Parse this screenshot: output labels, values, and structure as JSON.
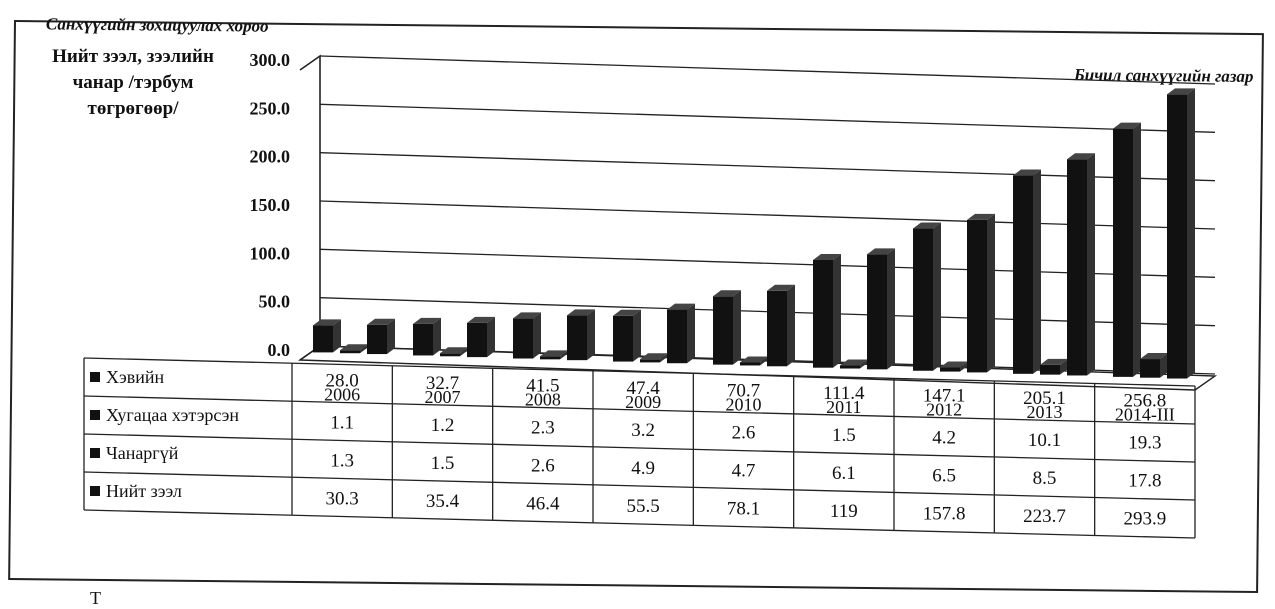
{
  "header": {
    "top_left": "Санхүүгийн зохицуулах хороо",
    "top_right": "Бичил санхүүгийн газар"
  },
  "chart_data": {
    "type": "bar",
    "ylabel": "Нийт зээл, зээлийн чанар /тэрбум төгрөгөөр/",
    "ylim": [
      0,
      300
    ],
    "yticks": [
      "0.0",
      "50.0",
      "100.0",
      "150.0",
      "200.0",
      "250.0",
      "300.0"
    ],
    "categories": [
      "2006",
      "2007",
      "2008",
      "2009",
      "2010",
      "2011",
      "2012",
      "2013",
      "2014-III"
    ],
    "series": [
      {
        "name": "Хэвийн",
        "values": [
          28.0,
          32.7,
          41.5,
          47.4,
          70.7,
          111.4,
          147.1,
          205.1,
          256.8
        ]
      },
      {
        "name": "Хугацаа хэтэрсэн",
        "values": [
          1.1,
          1.2,
          2.3,
          3.2,
          2.6,
          1.5,
          4.2,
          10.1,
          19.3
        ]
      },
      {
        "name": "Чанаргүй",
        "values": [
          1.3,
          1.5,
          2.6,
          4.9,
          4.7,
          6.1,
          6.5,
          8.5,
          17.8
        ]
      },
      {
        "name": "Нийт зээл",
        "values": [
          30.3,
          35.4,
          46.4,
          55.5,
          78.1,
          119,
          157.8,
          223.7,
          293.9
        ]
      }
    ],
    "table_labels": [
      "28.0",
      "32.7",
      "41.5",
      "47.4",
      "70.7",
      "111.4",
      "147.1",
      "205.1",
      "256.8"
    ],
    "legend_position": "data-table-bottom",
    "grid": true
  },
  "footer": {
    "text": "Т"
  }
}
